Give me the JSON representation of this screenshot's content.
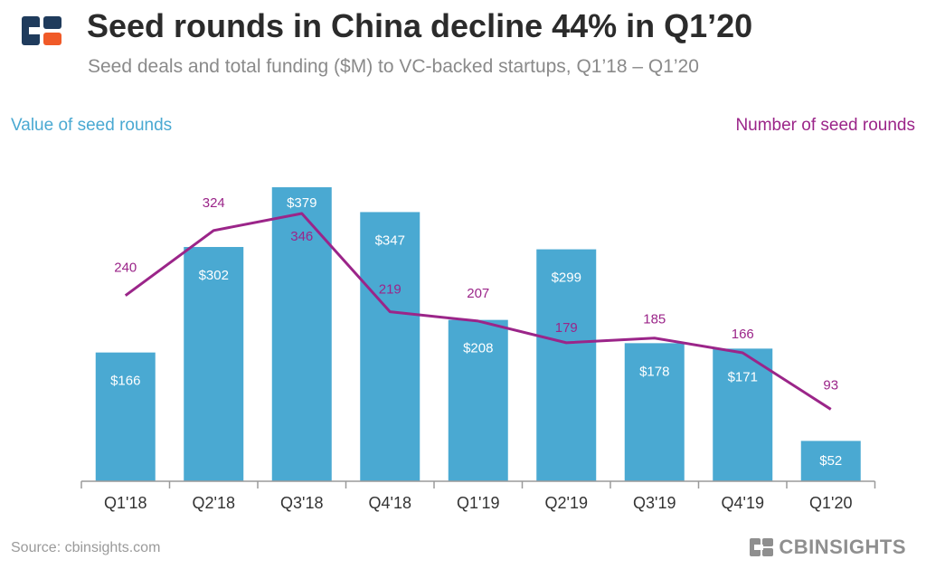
{
  "header": {
    "title": "Seed rounds in China decline 44% in Q1’20",
    "subtitle": "Seed deals and total funding ($M) to VC-backed startups, Q1’18 – Q1’20"
  },
  "legend": {
    "left": "Value of seed rounds",
    "right": "Number of seed rounds"
  },
  "footer": {
    "source": "Source: cbinsights.com",
    "brand": "CBINSIGHTS"
  },
  "colors": {
    "bar": "#4aa9d2",
    "line": "#9b2589",
    "logo_navy": "#1f3b5c",
    "logo_orange": "#f05a28"
  },
  "chart_data": {
    "type": "bar",
    "categories": [
      "Q1'18",
      "Q2'18",
      "Q3'18",
      "Q4'18",
      "Q1'19",
      "Q2'19",
      "Q3'19",
      "Q4'19",
      "Q1'20"
    ],
    "series": [
      {
        "name": "Value of seed rounds",
        "type": "bar",
        "axis": "left",
        "values": [
          166,
          302,
          379,
          347,
          208,
          299,
          178,
          171,
          52
        ],
        "labels": [
          "$166",
          "$302",
          "$379",
          "$347",
          "$208",
          "$299",
          "$178",
          "$171",
          "$52"
        ],
        "ylim": [
          0,
          390
        ]
      },
      {
        "name": "Number of seed rounds",
        "type": "line",
        "axis": "right",
        "values": [
          240,
          324,
          346,
          219,
          207,
          179,
          185,
          166,
          93
        ],
        "labels": [
          "240",
          "324",
          "346",
          "219",
          "207",
          "179",
          "185",
          "166",
          "93"
        ],
        "ylim": [
          0,
          440
        ]
      }
    ],
    "grid": false,
    "legend_placement": "top-left and top-right"
  }
}
